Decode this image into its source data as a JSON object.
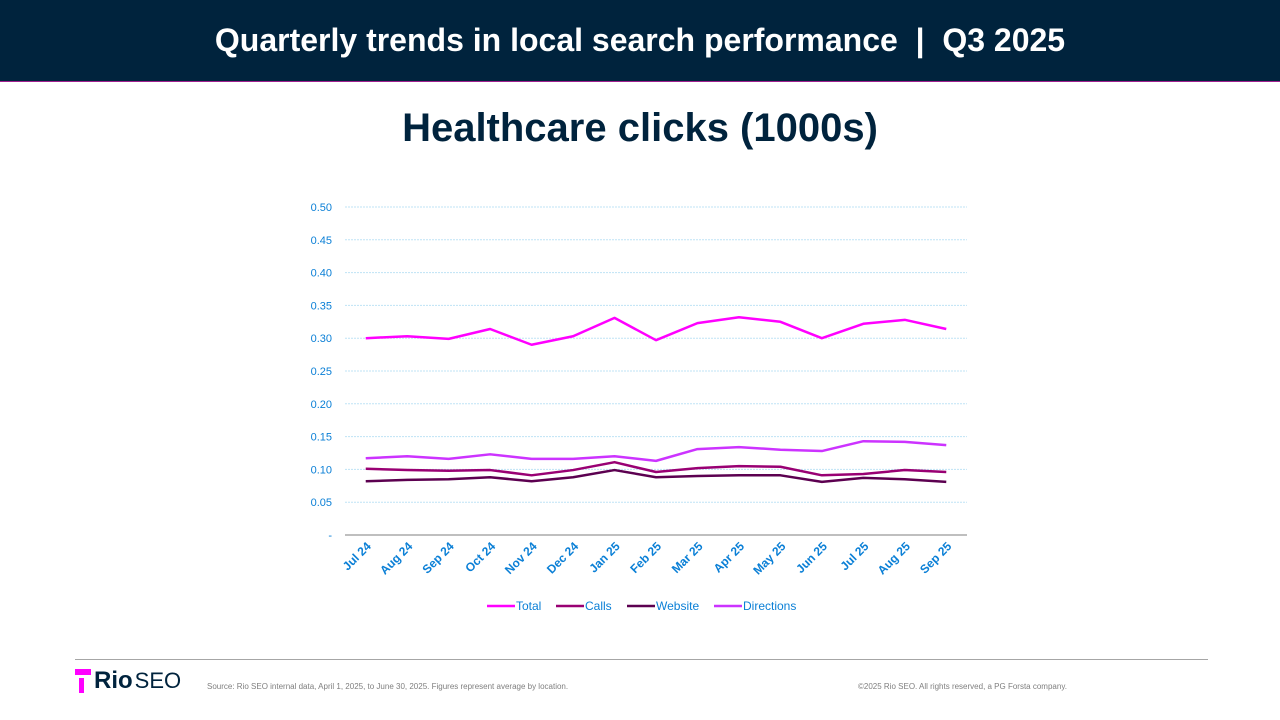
{
  "header": {
    "title": "Quarterly trends in local search performance  |  Q3 2025"
  },
  "footer": {
    "logo_text": "Rio SEO",
    "source": "Source: Rio SEO internal data, April 1, 2025, to June 30, 2025. Figures represent average by location.",
    "copyright": "©2025 Rio SEO. All rights reserved, a PG Forsta company."
  },
  "chart_data": {
    "type": "line",
    "title": "Healthcare clicks (1000s)",
    "categories": [
      "Jul 24",
      "Aug 24",
      "Sep 24",
      "Oct 24",
      "Nov 24",
      "Dec 24",
      "Jan 25",
      "Feb 25",
      "Mar 25",
      "Apr 25",
      "May 25",
      "Jun 25",
      "Jul 25",
      "Aug 25",
      "Sep 25"
    ],
    "ylim": [
      0,
      0.5
    ],
    "yticks": [
      "-",
      "0.05",
      "0.10",
      "0.15",
      "0.20",
      "0.25",
      "0.30",
      "0.35",
      "0.40",
      "0.45",
      "0.50"
    ],
    "grid": true,
    "legend": "bottom",
    "series": [
      {
        "name": "Total",
        "color": "#ff00ff",
        "values": [
          0.3,
          0.303,
          0.299,
          0.314,
          0.29,
          0.303,
          0.331,
          0.297,
          0.323,
          0.332,
          0.325,
          0.3,
          0.322,
          0.328,
          0.314
        ]
      },
      {
        "name": "Calls",
        "color": "#990073",
        "values": [
          0.101,
          0.099,
          0.098,
          0.099,
          0.091,
          0.099,
          0.111,
          0.096,
          0.102,
          0.105,
          0.104,
          0.091,
          0.093,
          0.099,
          0.096
        ]
      },
      {
        "name": "Website",
        "color": "#5c0050",
        "values": [
          0.082,
          0.084,
          0.085,
          0.088,
          0.082,
          0.088,
          0.099,
          0.088,
          0.09,
          0.091,
          0.091,
          0.081,
          0.087,
          0.085,
          0.081
        ]
      },
      {
        "name": "Directions",
        "color": "#cc33ff",
        "values": [
          0.117,
          0.12,
          0.116,
          0.123,
          0.116,
          0.116,
          0.12,
          0.113,
          0.131,
          0.134,
          0.13,
          0.128,
          0.143,
          0.142,
          0.137
        ]
      }
    ]
  }
}
